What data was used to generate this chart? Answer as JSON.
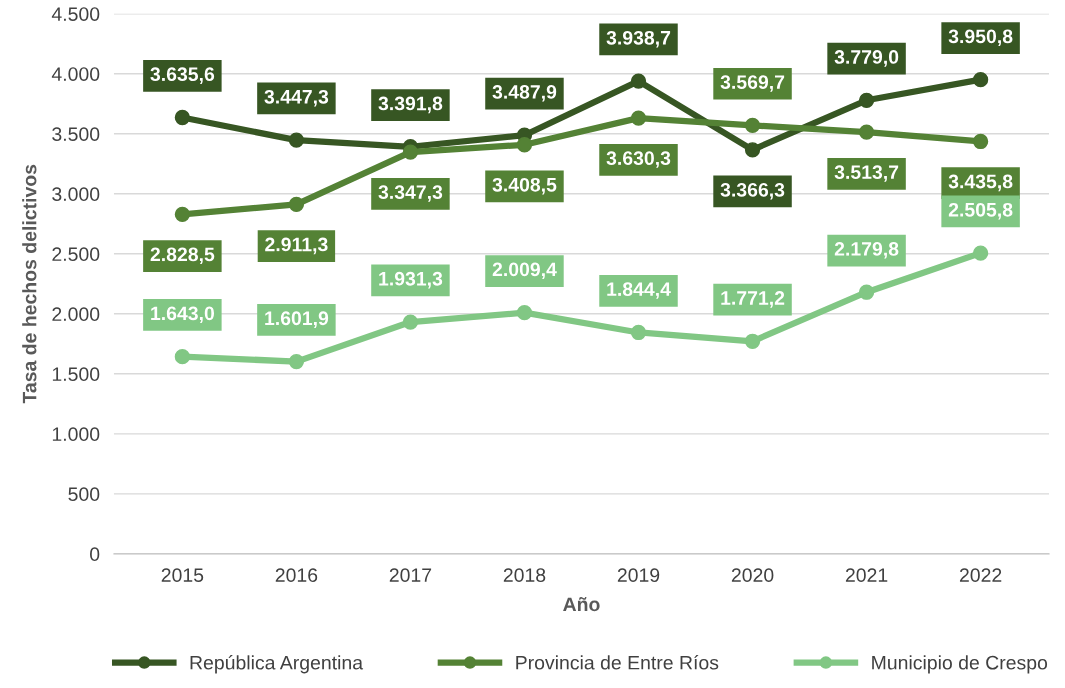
{
  "chart_data": {
    "type": "line",
    "xlabel": "Año",
    "ylabel": "Tasa de hechos delictivos",
    "categories": [
      "2015",
      "2016",
      "2017",
      "2018",
      "2019",
      "2020",
      "2021",
      "2022"
    ],
    "series": [
      {
        "name": "República Argentina",
        "color": "#375623",
        "values": [
          3635.6,
          3447.3,
          3391.8,
          3487.9,
          3938.7,
          3366.3,
          3779.0,
          3950.8
        ],
        "value_labels": [
          "3.635,6",
          "3.447,3",
          "3.391,8",
          "3.487,9",
          "3.938,7",
          "3.366,3",
          "3.779,0",
          "3.950,8"
        ]
      },
      {
        "name": "Provincia de Entre Ríos",
        "color": "#548235",
        "values": [
          2828.5,
          2911.3,
          3347.3,
          3408.5,
          3630.3,
          3569.7,
          3513.7,
          3435.8
        ],
        "value_labels": [
          "2.828,5",
          "2.911,3",
          "3.347,3",
          "3.408,5",
          "3.630,3",
          "3.569,7",
          "3.513,7",
          "3.435,8"
        ]
      },
      {
        "name": "Municipio de Crespo",
        "color": "#81c784",
        "values": [
          1643.0,
          1601.9,
          1931.3,
          2009.4,
          1844.4,
          1771.2,
          2179.8,
          2505.8
        ],
        "value_labels": [
          "1.643,0",
          "1.601,9",
          "1.931,3",
          "2.009,4",
          "1.844,4",
          "1.771,2",
          "2.179,8",
          "2.505,8"
        ]
      }
    ],
    "ylim": [
      0,
      4500
    ],
    "yticks": [
      {
        "value": 0,
        "label": "0"
      },
      {
        "value": 500,
        "label": "500"
      },
      {
        "value": 1000,
        "label": "1.000"
      },
      {
        "value": 1500,
        "label": "1.500"
      },
      {
        "value": 2000,
        "label": "2.000"
      },
      {
        "value": 2500,
        "label": "2.500"
      },
      {
        "value": 3000,
        "label": "3.000"
      },
      {
        "value": 3500,
        "label": "3.500"
      },
      {
        "value": 4000,
        "label": "4.000"
      },
      {
        "value": 4500,
        "label": "4.500"
      }
    ],
    "grid": "y",
    "legend": "bottom",
    "marker": "circle",
    "line_style": "solid"
  }
}
